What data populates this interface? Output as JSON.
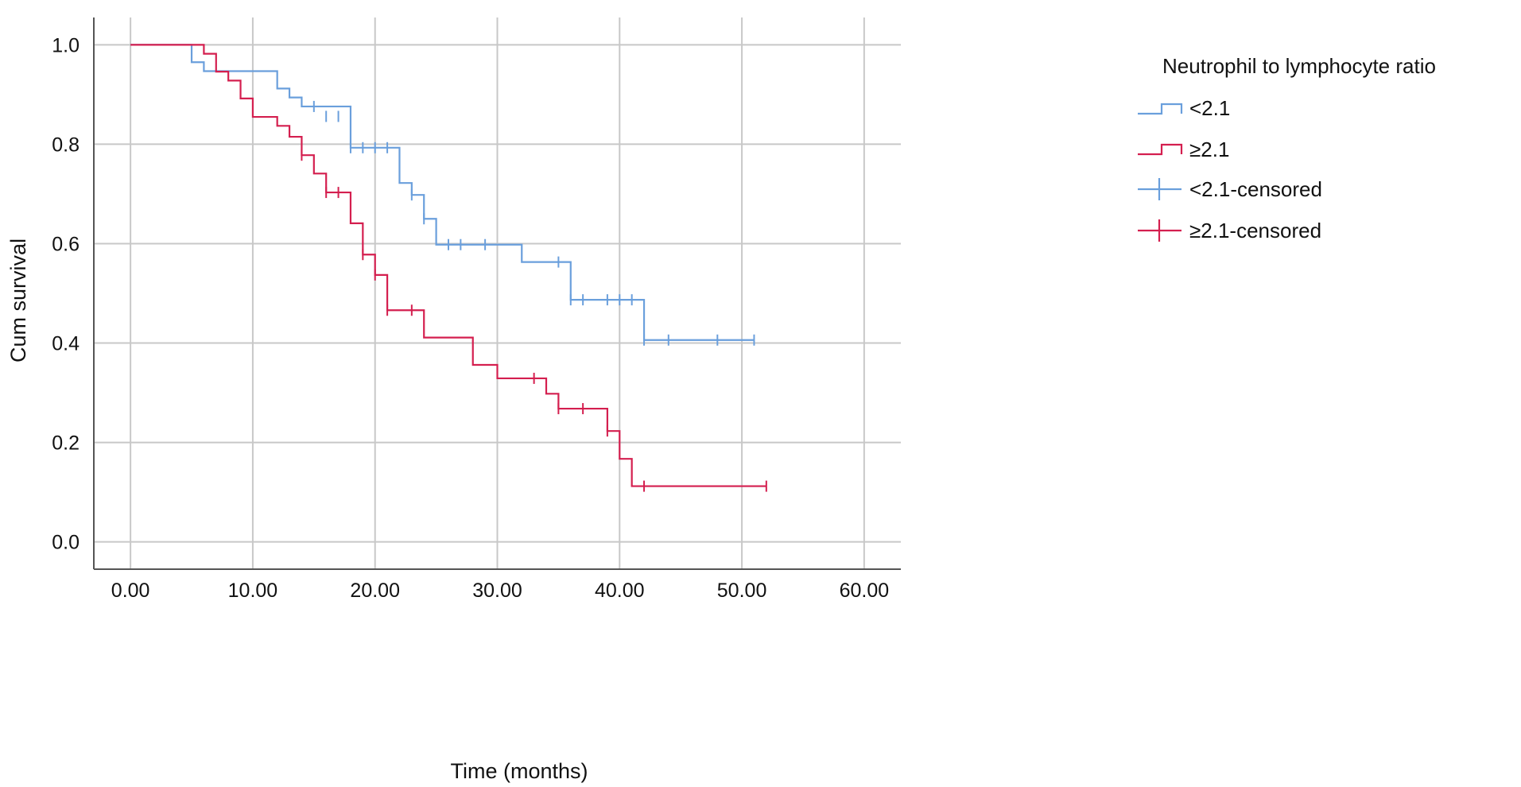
{
  "chart_data": {
    "type": "line",
    "title": "",
    "xlabel": "Time (months)",
    "ylabel": "Cum survival",
    "xlim": [
      -3,
      63
    ],
    "ylim": [
      -0.055,
      1.055
    ],
    "x_ticks": [
      0,
      10,
      20,
      30,
      40,
      50,
      60
    ],
    "x_tick_labels": [
      "0.00",
      "10.00",
      "20.00",
      "30.00",
      "40.00",
      "50.00",
      "60.00"
    ],
    "y_ticks": [
      0.0,
      0.2,
      0.4,
      0.6,
      0.8,
      1.0
    ],
    "y_tick_labels": [
      "0.0",
      "0.2",
      "0.4",
      "0.6",
      "0.8",
      "1.0"
    ],
    "grid": true,
    "legend_position": "right",
    "legend_title": "Neutrophil to lymphocyte ratio",
    "legend_items": [
      "<2.1",
      "≥2.1",
      "<2.1-censored",
      "≥2.1-censored"
    ],
    "series": [
      {
        "name": "<2.1",
        "color": "#6a9fdc",
        "steps": [
          [
            0,
            1.0
          ],
          [
            5,
            0.965
          ],
          [
            6,
            0.947
          ],
          [
            12,
            0.912
          ],
          [
            13,
            0.894
          ],
          [
            14,
            0.876
          ],
          [
            18,
            0.793
          ],
          [
            22,
            0.722
          ],
          [
            23,
            0.698
          ],
          [
            24,
            0.65
          ],
          [
            25,
            0.598
          ],
          [
            32,
            0.563
          ],
          [
            36,
            0.487
          ],
          [
            42,
            0.406
          ]
        ],
        "end_x": 51,
        "censored": [
          [
            15,
            0.876
          ],
          [
            16,
            0.856
          ],
          [
            17,
            0.856
          ],
          [
            18,
            0.793
          ],
          [
            19,
            0.793
          ],
          [
            20,
            0.793
          ],
          [
            21,
            0.793
          ],
          [
            23,
            0.698
          ],
          [
            24,
            0.65
          ],
          [
            26,
            0.598
          ],
          [
            27,
            0.598
          ],
          [
            29,
            0.598
          ],
          [
            35,
            0.563
          ],
          [
            36,
            0.487
          ],
          [
            37,
            0.487
          ],
          [
            39,
            0.487
          ],
          [
            40,
            0.487
          ],
          [
            41,
            0.487
          ],
          [
            42,
            0.406
          ],
          [
            44,
            0.406
          ],
          [
            48,
            0.406
          ],
          [
            51,
            0.406
          ]
        ]
      },
      {
        "name": "≥2.1",
        "color": "#d41f4f",
        "steps": [
          [
            0,
            1.0
          ],
          [
            6,
            0.982
          ],
          [
            7,
            0.946
          ],
          [
            8,
            0.928
          ],
          [
            9,
            0.892
          ],
          [
            10,
            0.855
          ],
          [
            12,
            0.837
          ],
          [
            13,
            0.815
          ],
          [
            14,
            0.778
          ],
          [
            15,
            0.741
          ],
          [
            16,
            0.703
          ],
          [
            18,
            0.641
          ],
          [
            19,
            0.578
          ],
          [
            20,
            0.537
          ],
          [
            21,
            0.466
          ],
          [
            24,
            0.411
          ],
          [
            28,
            0.356
          ],
          [
            30,
            0.329
          ],
          [
            34,
            0.298
          ],
          [
            35,
            0.268
          ],
          [
            39,
            0.223
          ],
          [
            40,
            0.167
          ],
          [
            41,
            0.112
          ]
        ],
        "end_x": 52,
        "censored": [
          [
            14,
            0.778
          ],
          [
            16,
            0.703
          ],
          [
            17,
            0.703
          ],
          [
            19,
            0.578
          ],
          [
            20,
            0.537
          ],
          [
            21,
            0.466
          ],
          [
            23,
            0.466
          ],
          [
            33,
            0.329
          ],
          [
            35,
            0.268
          ],
          [
            37,
            0.268
          ],
          [
            39,
            0.223
          ],
          [
            42,
            0.112
          ],
          [
            52,
            0.112
          ]
        ]
      }
    ]
  }
}
